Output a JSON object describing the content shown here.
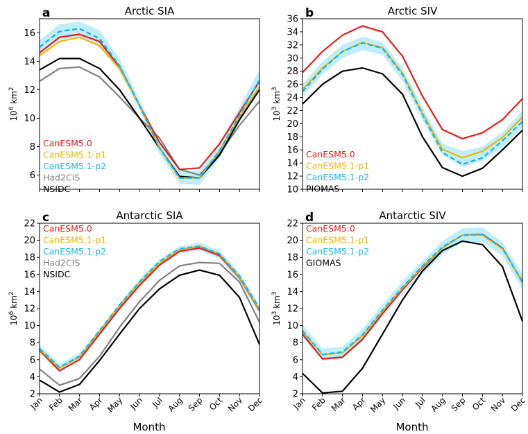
{
  "figure": {
    "xlabel": "Month",
    "months": [
      "Jan",
      "Feb",
      "Mar",
      "Apr",
      "May",
      "Jun",
      "Jul",
      "Aug",
      "Sep",
      "Oct",
      "Nov",
      "Dec"
    ]
  },
  "colors": {
    "CanESM5.0": "#e41a1c",
    "CanESM5.1-p1": "#f0b400",
    "CanESM5.1-p2": "#1ab7e6",
    "Had2CIS": "#808080",
    "NSIDC": "#000000",
    "PIOMAS": "#000000",
    "GIOMAS": "#000000",
    "spread": "#bfeefa"
  },
  "chart_data": [
    {
      "type": "line",
      "panel_letter": "a",
      "title": "Arctic SIA",
      "ylabel_base": "10",
      "ylabel_exp": "6",
      "ylabel_unit": " km",
      "ylabel_unit_exp": "2",
      "ylim": [
        5,
        17
      ],
      "yticks": [
        6,
        8,
        10,
        12,
        14,
        16
      ],
      "show_xticklabels": false,
      "legend": [
        "CanESM5.0",
        "CanESM5.1-p1",
        "CanESM5.1-p2",
        "Had2CIS",
        "NSIDC"
      ],
      "spread_lower": [
        14.6,
        15.5,
        15.8,
        15.0,
        13.3,
        10.6,
        7.5,
        5.4,
        5.3,
        7.2,
        9.7,
        12.2
      ],
      "spread_upper": [
        15.5,
        16.6,
        16.8,
        16.2,
        14.2,
        11.3,
        8.3,
        6.3,
        6.3,
        8.2,
        10.8,
        13.4
      ],
      "series": [
        {
          "name": "Had2CIS",
          "values": [
            12.6,
            13.5,
            13.6,
            12.9,
            11.5,
            10.0,
            8.6,
            6.4,
            6.0,
            7.5,
            9.5,
            11.2
          ]
        },
        {
          "name": "NSIDC",
          "values": [
            13.4,
            14.2,
            14.2,
            13.5,
            12.0,
            10.0,
            7.9,
            5.9,
            5.8,
            7.4,
            9.9,
            12.0
          ]
        },
        {
          "name": "CanESM5.0",
          "values": [
            14.6,
            15.7,
            15.9,
            15.4,
            13.6,
            10.9,
            8.3,
            6.4,
            6.5,
            8.2,
            10.4,
            12.6
          ]
        },
        {
          "name": "CanESM5.1-p1",
          "values": [
            14.4,
            15.4,
            15.7,
            15.1,
            13.5,
            10.9,
            7.9,
            5.8,
            5.8,
            7.7,
            10.1,
            12.2
          ]
        },
        {
          "name": "CanESM5.1-p2",
          "values": [
            15.0,
            16.1,
            16.3,
            15.6,
            13.7,
            10.9,
            7.9,
            5.8,
            5.8,
            7.7,
            10.2,
            12.7
          ],
          "dashed": true
        }
      ]
    },
    {
      "type": "line",
      "panel_letter": "b",
      "title": "Arctic SIV",
      "ylabel_base": "10",
      "ylabel_exp": "3",
      "ylabel_unit": " km",
      "ylabel_unit_exp": "3",
      "ylim": [
        10,
        36
      ],
      "yticks": [
        10,
        12,
        14,
        16,
        18,
        20,
        22,
        24,
        26,
        28,
        30,
        32,
        34,
        36
      ],
      "show_xticklabels": false,
      "legend": [
        "CanESM5.0",
        "CanESM5.1-p1",
        "CanESM5.1-p2",
        "PIOMAS"
      ],
      "spread_lower": [
        24.2,
        27.5,
        30.0,
        31.2,
        30.5,
        26.5,
        20.5,
        15.2,
        13.4,
        14.3,
        16.4,
        19.5
      ],
      "spread_upper": [
        26.0,
        29.5,
        32.0,
        33.3,
        32.4,
        28.5,
        22.5,
        17.0,
        15.8,
        16.5,
        18.7,
        22.0
      ],
      "series": [
        {
          "name": "PIOMAS",
          "values": [
            23.0,
            26.0,
            28.0,
            28.5,
            27.6,
            24.5,
            18.0,
            13.3,
            12.0,
            13.2,
            16.0,
            19.0
          ]
        },
        {
          "name": "CanESM5.0",
          "values": [
            27.8,
            31.0,
            33.5,
            34.9,
            34.0,
            30.3,
            24.2,
            19.1,
            17.7,
            18.6,
            20.6,
            23.8
          ]
        },
        {
          "name": "CanESM5.1-p1",
          "values": [
            25.2,
            28.5,
            31.0,
            32.4,
            31.6,
            27.7,
            21.6,
            16.1,
            14.8,
            15.8,
            17.9,
            21.0
          ]
        },
        {
          "name": "CanESM5.1-p2",
          "values": [
            24.9,
            28.3,
            31.0,
            32.3,
            31.5,
            27.5,
            21.4,
            15.6,
            13.8,
            14.8,
            17.4,
            20.3
          ],
          "dashed": true
        }
      ]
    },
    {
      "type": "line",
      "panel_letter": "c",
      "title": "Antarctic SIA",
      "ylabel_base": "10",
      "ylabel_exp": "6",
      "ylabel_unit": " km",
      "ylabel_unit_exp": "2",
      "ylim": [
        2,
        22
      ],
      "yticks": [
        2,
        4,
        6,
        8,
        10,
        12,
        14,
        16,
        18,
        20,
        22
      ],
      "show_xticklabels": true,
      "legend": [
        "CanESM5.0",
        "CanESM5.1-p1",
        "CanESM5.1-p2",
        "Had2CIS",
        "NSIDC"
      ],
      "spread_lower": [
        6.7,
        4.6,
        5.9,
        8.8,
        11.8,
        14.6,
        16.9,
        18.4,
        18.8,
        17.8,
        15.1,
        11.3
      ],
      "spread_upper": [
        7.8,
        5.5,
        6.8,
        9.6,
        12.6,
        15.5,
        17.8,
        19.3,
        19.7,
        18.8,
        16.2,
        12.4
      ],
      "series": [
        {
          "name": "NSIDC",
          "values": [
            3.6,
            2.2,
            3.1,
            5.9,
            9.0,
            12.0,
            14.3,
            15.9,
            16.5,
            15.9,
            13.3,
            7.8
          ]
        },
        {
          "name": "Had2CIS",
          "values": [
            4.9,
            3.0,
            3.8,
            6.4,
            9.8,
            12.8,
            15.3,
            17.0,
            17.4,
            17.3,
            15.1,
            10.4
          ]
        },
        {
          "name": "CanESM5.0",
          "values": [
            7.1,
            4.7,
            6.0,
            9.0,
            12.0,
            14.7,
            17.1,
            18.7,
            19.1,
            18.2,
            15.6,
            11.8
          ]
        },
        {
          "name": "CanESM5.1-p1",
          "values": [
            7.2,
            5.0,
            6.3,
            9.3,
            12.3,
            15.0,
            17.3,
            18.9,
            19.3,
            18.4,
            15.7,
            11.9
          ]
        },
        {
          "name": "CanESM5.1-p2",
          "values": [
            7.3,
            5.1,
            6.4,
            9.4,
            12.4,
            15.1,
            17.5,
            19.0,
            19.3,
            18.4,
            15.8,
            12.0
          ],
          "dashed": true
        }
      ]
    },
    {
      "type": "line",
      "panel_letter": "d",
      "title": "Antarctic SIV",
      "ylabel_base": "10",
      "ylabel_exp": "3",
      "ylabel_unit": " km",
      "ylabel_unit_exp": "3",
      "ylim": [
        2,
        22
      ],
      "yticks": [
        2,
        4,
        6,
        8,
        10,
        12,
        14,
        16,
        18,
        20,
        22
      ],
      "show_xticklabels": true,
      "legend": [
        "CanESM5.0",
        "CanESM5.1-p1",
        "CanESM5.1-p2",
        "GIOMAS"
      ],
      "spread_lower": [
        8.6,
        5.9,
        6.1,
        8.1,
        11.0,
        13.7,
        16.0,
        18.3,
        19.8,
        19.8,
        18.2,
        14.3
      ],
      "spread_upper": [
        10.1,
        7.3,
        7.5,
        9.6,
        12.5,
        15.2,
        17.6,
        19.9,
        21.4,
        21.5,
        19.8,
        16.0
      ],
      "series": [
        {
          "name": "GIOMAS",
          "values": [
            4.4,
            2.1,
            2.3,
            5.0,
            9.0,
            13.0,
            16.4,
            18.8,
            19.9,
            19.5,
            16.9,
            10.5
          ]
        },
        {
          "name": "CanESM5.0",
          "values": [
            9.0,
            6.1,
            6.3,
            8.4,
            11.4,
            14.2,
            16.8,
            19.1,
            20.6,
            20.7,
            19.1,
            15.1
          ]
        },
        {
          "name": "CanESM5.1-p1",
          "values": [
            9.3,
            6.6,
            6.8,
            8.8,
            11.7,
            14.4,
            16.9,
            19.1,
            20.6,
            20.6,
            19.0,
            15.2
          ]
        },
        {
          "name": "CanESM5.1-p2",
          "values": [
            9.4,
            6.6,
            6.9,
            8.9,
            11.8,
            14.5,
            17.0,
            19.2,
            20.6,
            20.7,
            19.1,
            15.1
          ],
          "dashed": true
        }
      ]
    }
  ]
}
